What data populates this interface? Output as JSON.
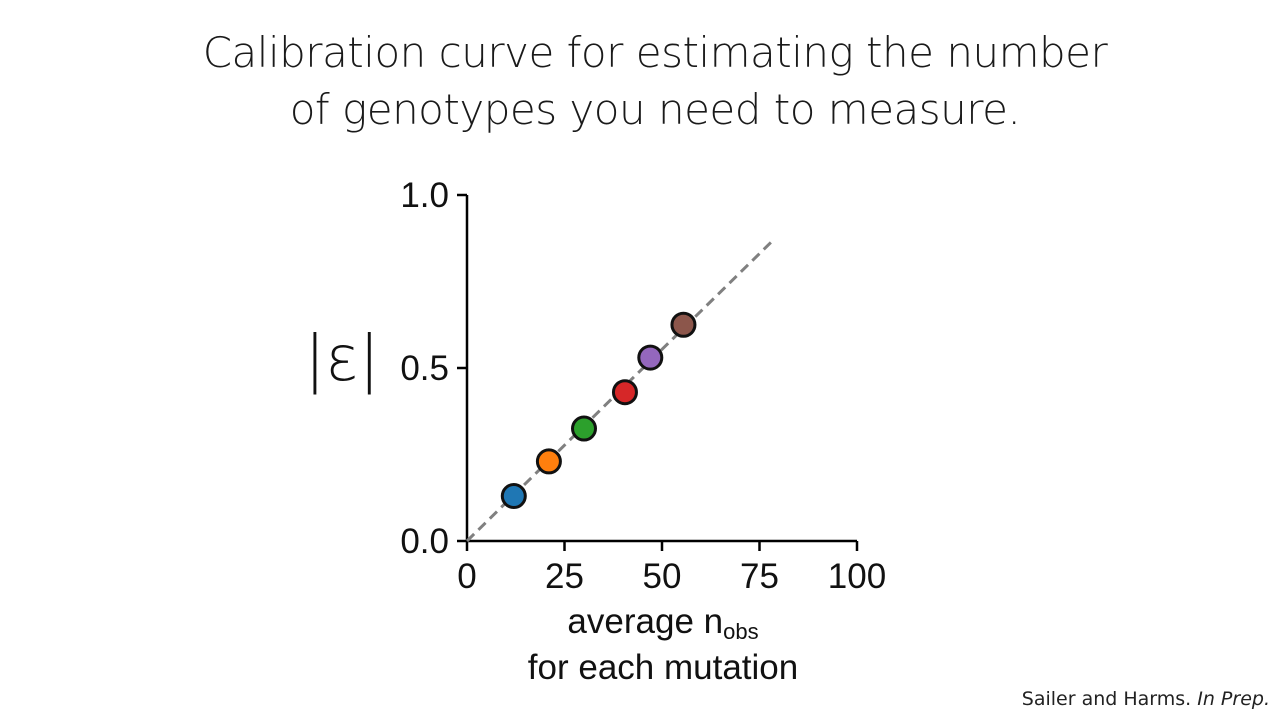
{
  "title": {
    "line1": "Calibration curve for estimating the number",
    "line2": "of genotypes you need to measure."
  },
  "chart_data": {
    "type": "scatter",
    "ylabel": "|ε|",
    "xlabel": {
      "main": "average n",
      "subscript": "obs",
      "line2": "for each mutation"
    },
    "xlim": [
      0,
      100
    ],
    "ylim": [
      0,
      1
    ],
    "xticks": [
      0,
      25,
      50,
      75,
      100
    ],
    "xtick_labels": [
      "0",
      "25",
      "50",
      "75",
      "100"
    ],
    "yticks": [
      0,
      0.5,
      1
    ],
    "ytick_labels": [
      "0.0",
      "0.5",
      "1.0"
    ],
    "grid": false,
    "legend": "none",
    "points": [
      {
        "x": 12,
        "y": 0.13,
        "color": "#1f77b4"
      },
      {
        "x": 21,
        "y": 0.23,
        "color": "#ff7f0e"
      },
      {
        "x": 30,
        "y": 0.325,
        "color": "#2ca02c"
      },
      {
        "x": 40.5,
        "y": 0.43,
        "color": "#d62728"
      },
      {
        "x": 47,
        "y": 0.53,
        "color": "#9467bd"
      },
      {
        "x": 55.5,
        "y": 0.625,
        "color": "#8c564b"
      }
    ],
    "fit_line": {
      "x": [
        0,
        79
      ],
      "y": [
        0,
        0.875
      ],
      "style": "dashed",
      "color": "#808080"
    }
  },
  "footer": {
    "authors": "Sailer and Harms. ",
    "status": "In Prep."
  }
}
